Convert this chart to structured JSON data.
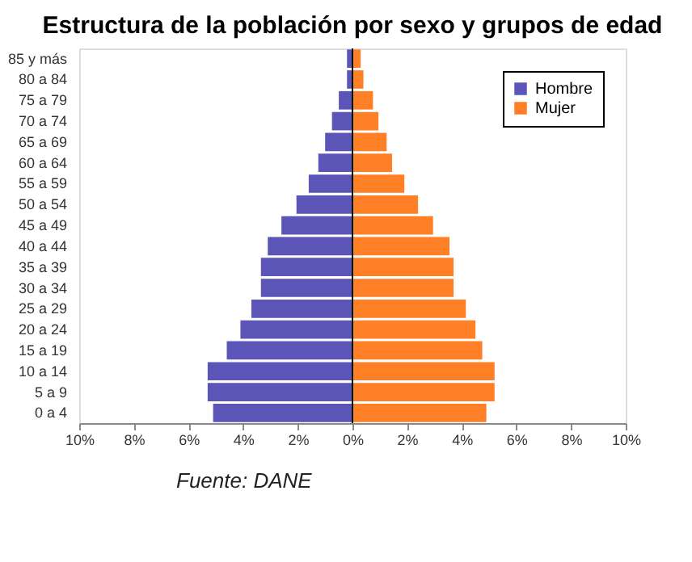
{
  "chart_data": {
    "type": "bar",
    "orientation": "horizontal",
    "title": "Estructura de la población por sexo y grupos de edad",
    "categories": [
      "85 y más",
      "80 a 84",
      "75 a 79",
      "70 a 74",
      "65 a 69",
      "60 a 64",
      "55 a 59",
      "50 a 54",
      "45 a 49",
      "40 a 44",
      "35 a 39",
      "30 a 34",
      "25 a 29",
      "20 a 24",
      "15 a 19",
      "10 a 14",
      "5 a 9",
      "0 a 4"
    ],
    "series": [
      {
        "name": "Hombre",
        "color": "#5b55b8",
        "values": [
          -0.2,
          -0.2,
          -0.5,
          -0.75,
          -1.0,
          -1.25,
          -1.6,
          -2.05,
          -2.6,
          -3.1,
          -3.35,
          -3.35,
          -3.7,
          -4.1,
          -4.6,
          -5.3,
          -5.3,
          -5.1
        ]
      },
      {
        "name": "Mujer",
        "color": "#ff7f27",
        "values": [
          0.3,
          0.4,
          0.75,
          0.95,
          1.25,
          1.45,
          1.9,
          2.4,
          2.95,
          3.55,
          3.7,
          3.7,
          4.15,
          4.5,
          4.75,
          5.2,
          5.2,
          4.9
        ]
      }
    ],
    "xlim": [
      -10,
      10
    ],
    "xticks": [
      {
        "value": -10,
        "label": "10%"
      },
      {
        "value": -8,
        "label": "8%"
      },
      {
        "value": -6,
        "label": "6%"
      },
      {
        "value": -4,
        "label": "4%"
      },
      {
        "value": -2,
        "label": "2%"
      },
      {
        "value": 0,
        "label": "0%"
      },
      {
        "value": 2,
        "label": "2%"
      },
      {
        "value": 4,
        "label": "4%"
      },
      {
        "value": 6,
        "label": "6%"
      },
      {
        "value": 8,
        "label": "8%"
      },
      {
        "value": 10,
        "label": "10%"
      }
    ],
    "stacked": true,
    "legend": "top right",
    "annotations": [
      "Fuente: DANE"
    ]
  }
}
